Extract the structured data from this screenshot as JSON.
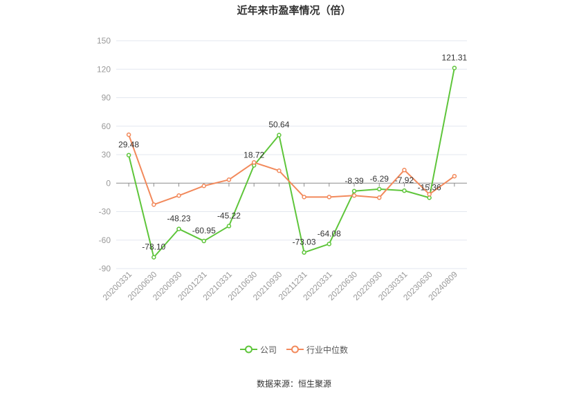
{
  "source": "数据来源：恒生聚源",
  "chart_data": {
    "type": "line",
    "title": "近年来市盈率情况（倍）",
    "categories": [
      "20200331",
      "20200630",
      "20200930",
      "20201231",
      "20210331",
      "20210630",
      "20210930",
      "20211231",
      "20220331",
      "20220630",
      "20220930",
      "20230331",
      "20230630",
      "20240809"
    ],
    "yticks": [
      150,
      120,
      90,
      60,
      30,
      0,
      -30,
      -60,
      -90
    ],
    "ylim": [
      -90,
      150
    ],
    "grid": true,
    "legend": "bottom",
    "series": [
      {
        "name": "公司",
        "color": "#5ec53a",
        "values": [
          29.48,
          -78.1,
          -48.23,
          -60.95,
          -45.22,
          18.72,
          50.64,
          -73.03,
          -64.08,
          -8.39,
          -6.29,
          -7.92,
          -15.36,
          121.31
        ],
        "labels": [
          "29.48",
          "-78.10",
          "-48.23",
          "-60.95",
          "-45.22",
          "18.72",
          "50.64",
          "-73.03",
          "-64.08",
          "-8.39",
          "-6.29",
          "-7.92",
          "-15.36",
          "121.31"
        ]
      },
      {
        "name": "行业中位数",
        "color": "#f2895b",
        "values": [
          51.0,
          -22.6,
          -13.1,
          -2.9,
          3.6,
          21.8,
          13.1,
          -14.6,
          -14.6,
          -13.1,
          -15.3,
          13.8,
          -11.7,
          7.3
        ]
      }
    ]
  }
}
